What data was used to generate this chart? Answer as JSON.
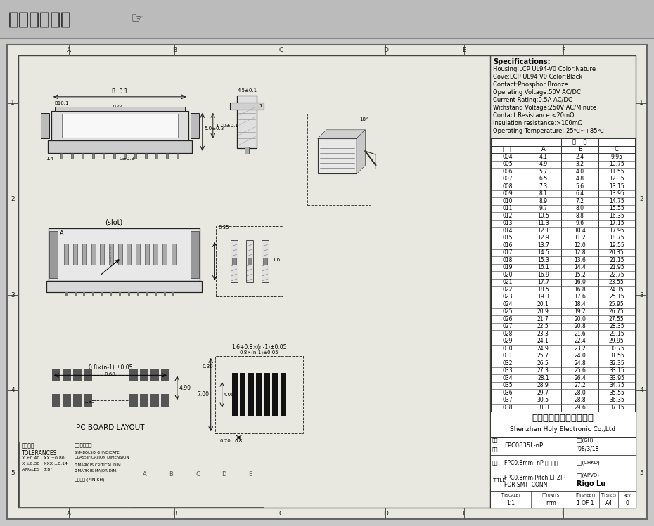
{
  "title_text": "在线图纸下载",
  "bg_color": "#c8c8c8",
  "paper_color": "#e8e8e0",
  "specs": [
    "Specifications:",
    "Housing:LCP UL94-V0 Color:Nature",
    "Cove:LCP UL94-V0 Color:Black",
    "Contact:Phosphor Bronze",
    "Operating Voltage:50V AC/DC",
    "Current Rating:0.5A AC/DC",
    "Withstand Voltage:250V AC/Minute",
    "Contact Resistance:<20mΩ",
    "Insulation resistance:>100mΩ",
    "Operating Temperature:-25℃~+85℃"
  ],
  "table_data": [
    [
      "004",
      "4.1",
      "2.4",
      "9.95"
    ],
    [
      "005",
      "4.9",
      "3.2",
      "10.75"
    ],
    [
      "006",
      "5.7",
      "4.0",
      "11.55"
    ],
    [
      "007",
      "6.5",
      "4.8",
      "12.35"
    ],
    [
      "008",
      "7.3",
      "5.6",
      "13.15"
    ],
    [
      "009",
      "8.1",
      "6.4",
      "13.95"
    ],
    [
      "010",
      "8.9",
      "7.2",
      "14.75"
    ],
    [
      "011",
      "9.7",
      "8.0",
      "15.55"
    ],
    [
      "012",
      "10.5",
      "8.8",
      "16.35"
    ],
    [
      "013",
      "11.3",
      "9.6",
      "17.15"
    ],
    [
      "014",
      "12.1",
      "10.4",
      "17.95"
    ],
    [
      "015",
      "12.9",
      "11.2",
      "18.75"
    ],
    [
      "016",
      "13.7",
      "12.0",
      "19.55"
    ],
    [
      "017",
      "14.5",
      "12.8",
      "20.35"
    ],
    [
      "018",
      "15.3",
      "13.6",
      "21.15"
    ],
    [
      "019",
      "16.1",
      "14.4",
      "21.95"
    ],
    [
      "020",
      "16.9",
      "15.2",
      "22.75"
    ],
    [
      "021",
      "17.7",
      "16.0",
      "23.55"
    ],
    [
      "022",
      "18.5",
      "16.8",
      "24.35"
    ],
    [
      "023",
      "19.3",
      "17.6",
      "25.15"
    ],
    [
      "024",
      "20.1",
      "18.4",
      "25.95"
    ],
    [
      "025",
      "20.9",
      "19.2",
      "26.75"
    ],
    [
      "026",
      "21.7",
      "20.0",
      "27.55"
    ],
    [
      "027",
      "22.5",
      "20.8",
      "28.35"
    ],
    [
      "028",
      "23.3",
      "21.6",
      "29.15"
    ],
    [
      "029",
      "24.1",
      "22.4",
      "29.95"
    ],
    [
      "030",
      "24.9",
      "23.2",
      "30.75"
    ],
    [
      "031",
      "25.7",
      "24.0",
      "31.55"
    ],
    [
      "032",
      "26.5",
      "24.8",
      "32.35"
    ],
    [
      "033",
      "27.3",
      "25.6",
      "33.15"
    ],
    [
      "034",
      "28.1",
      "26.4",
      "33.95"
    ],
    [
      "035",
      "28.9",
      "27.2",
      "34.75"
    ],
    [
      "036",
      "29.7",
      "28.0",
      "35.55"
    ],
    [
      "037",
      "30.5",
      "28.8",
      "36.35"
    ],
    [
      "038",
      "31.3",
      "29.6",
      "37.15"
    ]
  ],
  "company_cn": "深圳市宏利电子有限公司",
  "company_en": "Shenzhen Holy Electronic Co.,Ltd",
  "drawing_no": "FPC0835L-nP",
  "date": "'08/3/18",
  "item_name_cn": "FPC0.8mm -nP 立贴带锁",
  "title_content1": "FPC0.8mm Pitch LT ZIP",
  "title_content2": "FOR SMT  CONN",
  "approved": "Rigo Lu",
  "grid_labels_x": [
    "A",
    "B",
    "C",
    "D",
    "E",
    "F"
  ],
  "grid_labels_y": [
    "1",
    "2",
    "3",
    "4",
    "5"
  ]
}
